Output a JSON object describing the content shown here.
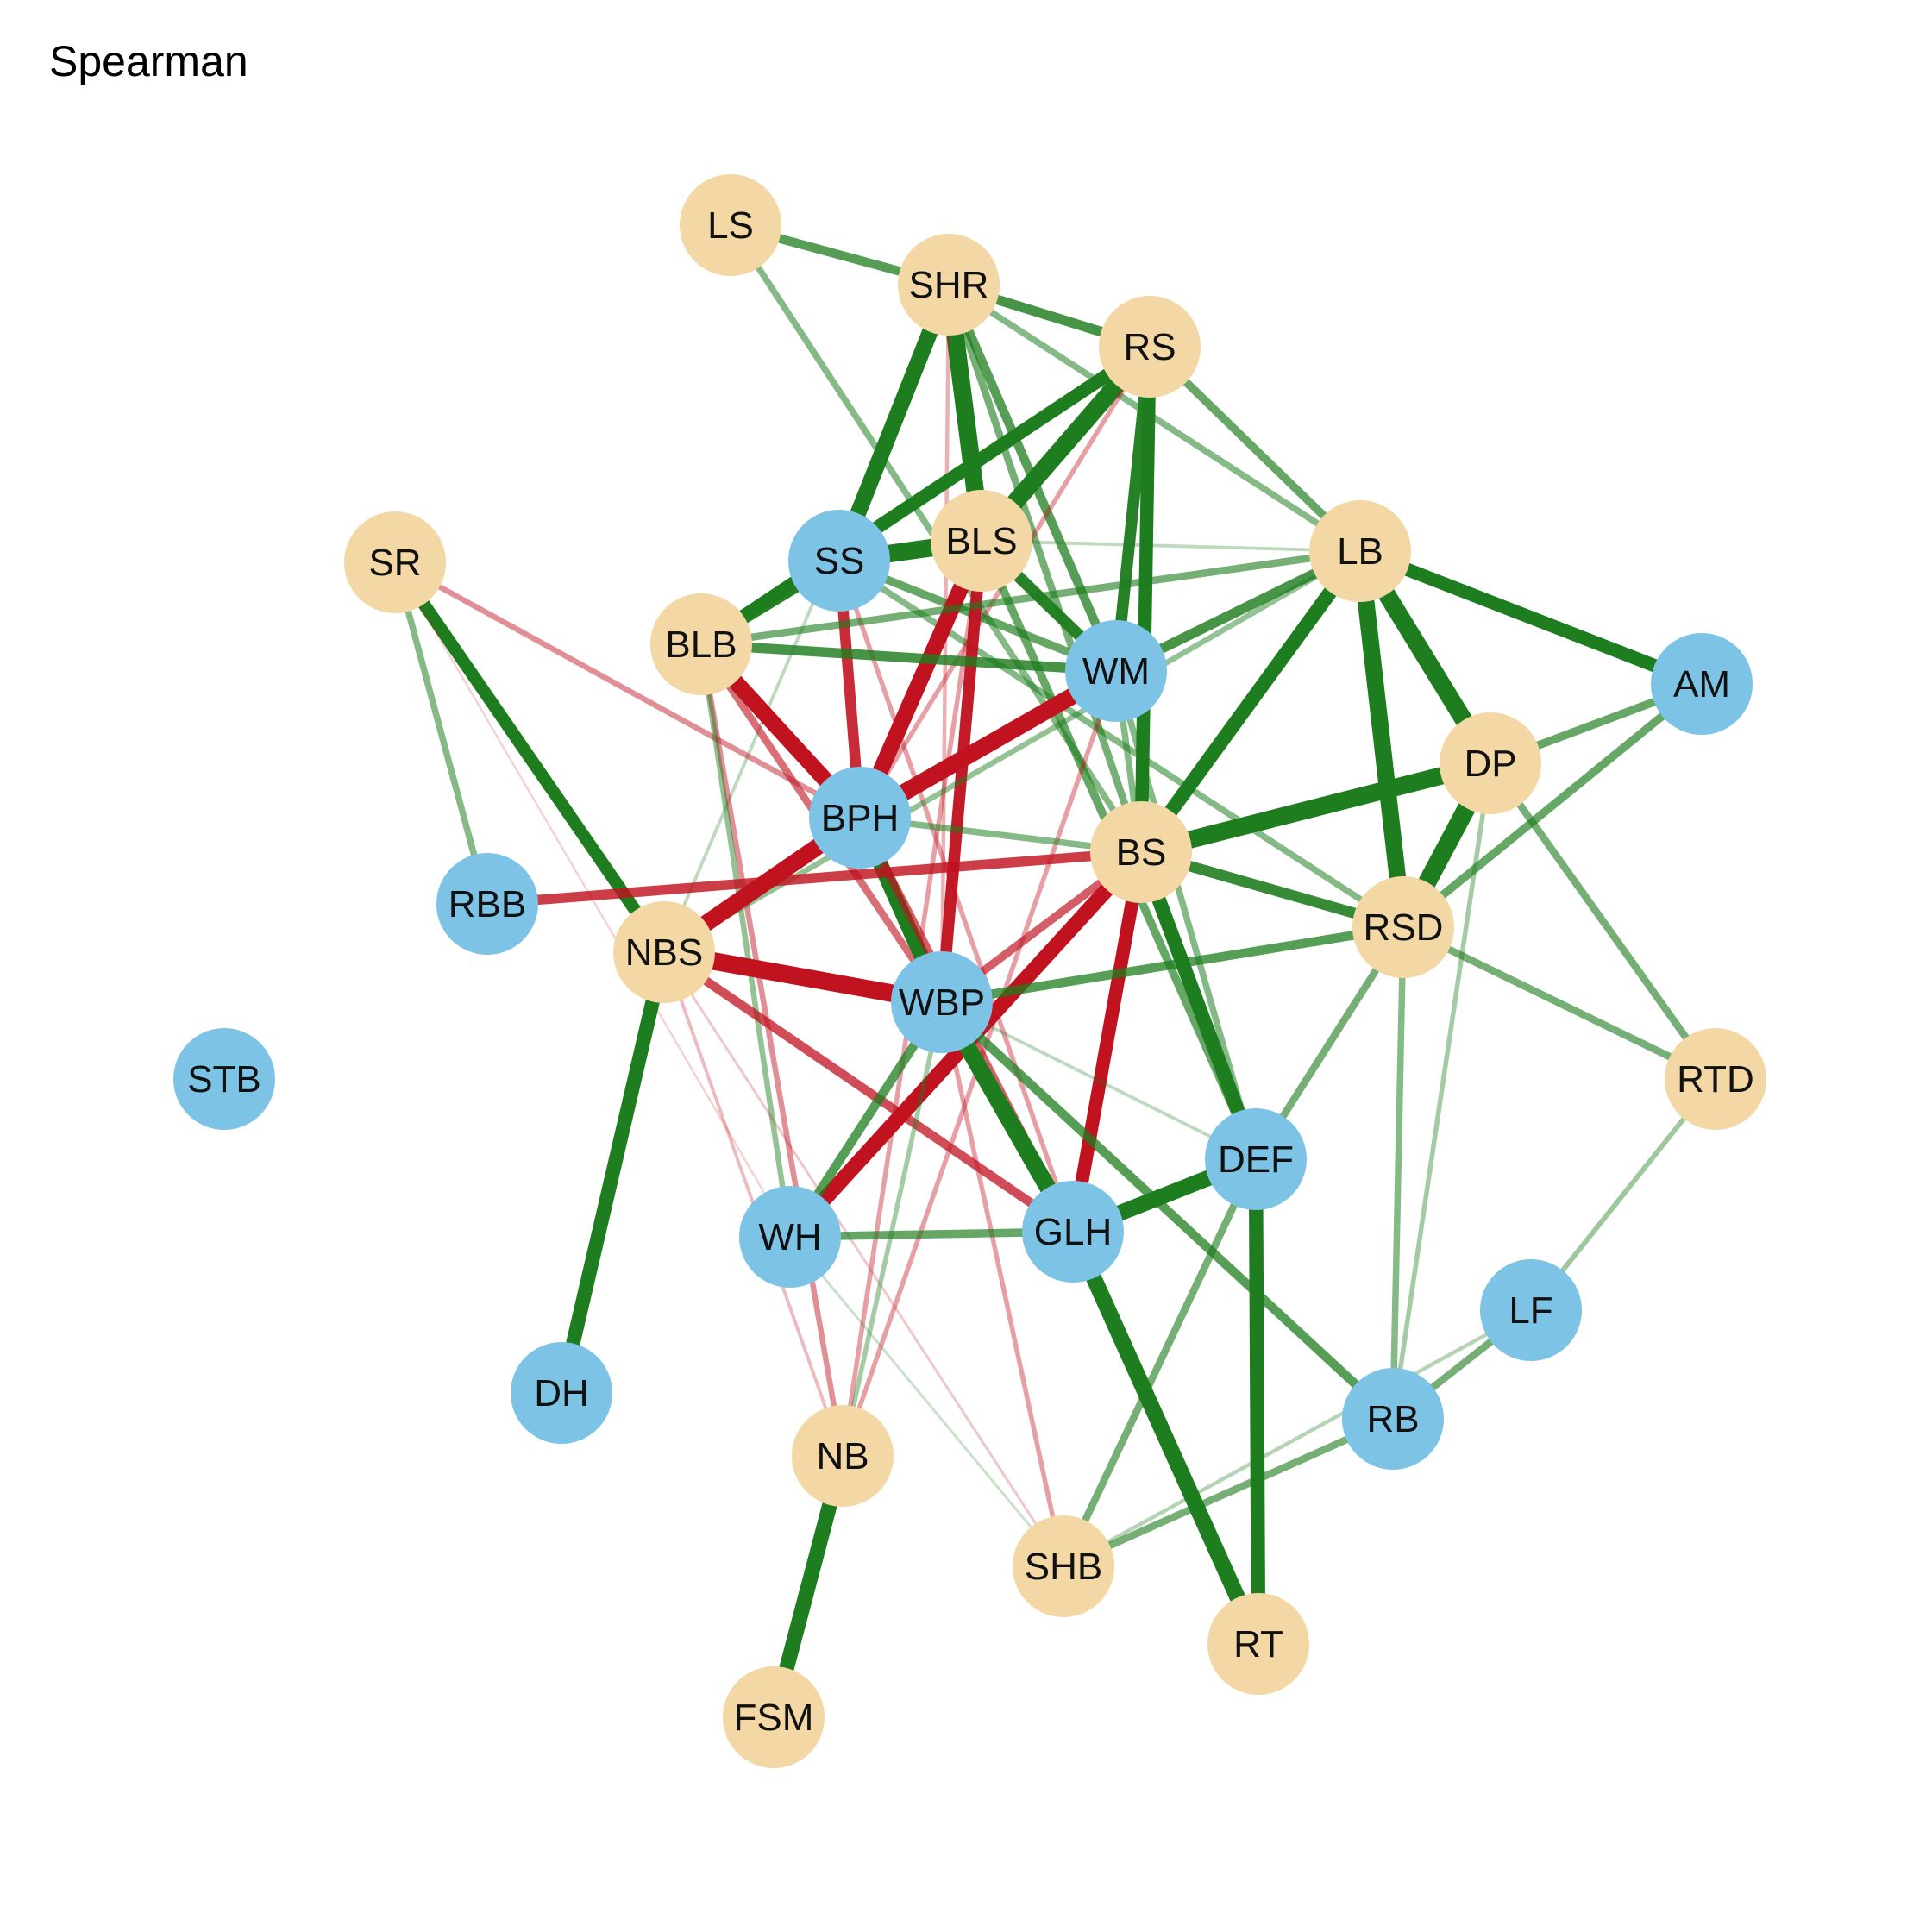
{
  "title": "Spearman",
  "colors": {
    "positive": "#1e7d1e",
    "negative": "#c0121f",
    "group_a": "#f3d7a5",
    "group_b": "#7dc3e6"
  },
  "nodes": [
    {
      "id": "LS",
      "group": "a"
    },
    {
      "id": "SHR",
      "group": "a"
    },
    {
      "id": "RS",
      "group": "a"
    },
    {
      "id": "SR",
      "group": "a"
    },
    {
      "id": "SS",
      "group": "b"
    },
    {
      "id": "BLS",
      "group": "a"
    },
    {
      "id": "LB",
      "group": "a"
    },
    {
      "id": "BLB",
      "group": "a"
    },
    {
      "id": "WM",
      "group": "b"
    },
    {
      "id": "AM",
      "group": "b"
    },
    {
      "id": "DP",
      "group": "a"
    },
    {
      "id": "BPH",
      "group": "b"
    },
    {
      "id": "BS",
      "group": "a"
    },
    {
      "id": "RBB",
      "group": "b"
    },
    {
      "id": "RSD",
      "group": "a"
    },
    {
      "id": "NBS",
      "group": "a"
    },
    {
      "id": "WBP",
      "group": "b"
    },
    {
      "id": "STB",
      "group": "b"
    },
    {
      "id": "RTD",
      "group": "a"
    },
    {
      "id": "DEF",
      "group": "b"
    },
    {
      "id": "WH",
      "group": "b"
    },
    {
      "id": "GLH",
      "group": "b"
    },
    {
      "id": "LF",
      "group": "b"
    },
    {
      "id": "DH",
      "group": "b"
    },
    {
      "id": "RB",
      "group": "b"
    },
    {
      "id": "NB",
      "group": "a"
    },
    {
      "id": "SHB",
      "group": "a"
    },
    {
      "id": "RT",
      "group": "a"
    },
    {
      "id": "FSM",
      "group": "a"
    }
  ],
  "edges": [
    {
      "source": "LS",
      "target": "SHR",
      "weight": 0.45
    },
    {
      "source": "LS",
      "target": "BS",
      "weight": 0.3
    },
    {
      "source": "SHR",
      "target": "RS",
      "weight": 0.5
    },
    {
      "source": "SHR",
      "target": "SS",
      "weight": 0.85
    },
    {
      "source": "SHR",
      "target": "BLS",
      "weight": 0.95
    },
    {
      "source": "SHR",
      "target": "WM",
      "weight": 0.45
    },
    {
      "source": "SHR",
      "target": "LB",
      "weight": 0.3
    },
    {
      "source": "SHR",
      "target": "BS",
      "weight": 0.35
    },
    {
      "source": "SHR",
      "target": "WBP",
      "weight": -0.15
    },
    {
      "source": "SHR",
      "target": "NBS",
      "weight": 0.12
    },
    {
      "source": "RS",
      "target": "BLB",
      "weight": 0.7
    },
    {
      "source": "RS",
      "target": "BLS",
      "weight": 0.95
    },
    {
      "source": "RS",
      "target": "WM",
      "weight": 0.6
    },
    {
      "source": "RS",
      "target": "BS",
      "weight": 0.7
    },
    {
      "source": "RS",
      "target": "LB",
      "weight": 0.4
    },
    {
      "source": "RS",
      "target": "BPH",
      "weight": -0.2
    },
    {
      "source": "SR",
      "target": "NBS",
      "weight": 0.65
    },
    {
      "source": "SR",
      "target": "RBB",
      "weight": 0.3
    },
    {
      "source": "SR",
      "target": "BPH",
      "weight": -0.25
    },
    {
      "source": "SR",
      "target": "WH",
      "weight": -0.05
    },
    {
      "source": "SS",
      "target": "BLS",
      "weight": 0.95
    },
    {
      "source": "SS",
      "target": "BLB",
      "weight": 0.6
    },
    {
      "source": "SS",
      "target": "BPH",
      "weight": -0.55
    },
    {
      "source": "SS",
      "target": "WM",
      "weight": 0.4
    },
    {
      "source": "SS",
      "target": "GLH",
      "weight": -0.2
    },
    {
      "source": "SS",
      "target": "RSD",
      "weight": 0.3
    },
    {
      "source": "BLS",
      "target": "BPH",
      "weight": -0.85
    },
    {
      "source": "BLS",
      "target": "WBP",
      "weight": -0.6
    },
    {
      "source": "BLS",
      "target": "WM",
      "weight": 0.6
    },
    {
      "source": "BLS",
      "target": "LB",
      "weight": 0.12
    },
    {
      "source": "BLS",
      "target": "DEF",
      "weight": 0.4
    },
    {
      "source": "BLS",
      "target": "NB",
      "weight": -0.2
    },
    {
      "source": "BLB",
      "target": "WM",
      "weight": 0.5
    },
    {
      "source": "BLB",
      "target": "BPH",
      "weight": -0.85
    },
    {
      "source": "BLB",
      "target": "LB",
      "weight": 0.35
    },
    {
      "source": "BLB",
      "target": "WBP",
      "weight": -0.35
    },
    {
      "source": "BLB",
      "target": "NB",
      "weight": -0.25
    },
    {
      "source": "BLB",
      "target": "WH",
      "weight": 0.25
    },
    {
      "source": "LB",
      "target": "WM",
      "weight": 0.5
    },
    {
      "source": "LB",
      "target": "AM",
      "weight": 0.7
    },
    {
      "source": "LB",
      "target": "DP",
      "weight": 0.95
    },
    {
      "source": "LB",
      "target": "RSD",
      "weight": 0.9
    },
    {
      "source": "LB",
      "target": "BS",
      "weight": 0.75
    },
    {
      "source": "LB",
      "target": "NBS",
      "weight": 0.25
    },
    {
      "source": "WM",
      "target": "BPH",
      "weight": -0.9
    },
    {
      "source": "WM",
      "target": "BS",
      "weight": 0.3
    },
    {
      "source": "WM",
      "target": "DEF",
      "weight": 0.3
    },
    {
      "source": "WM",
      "target": "NB",
      "weight": -0.2
    },
    {
      "source": "AM",
      "target": "DP",
      "weight": 0.4
    },
    {
      "source": "AM",
      "target": "RSD",
      "weight": 0.4
    },
    {
      "source": "DP",
      "target": "BS",
      "weight": 0.95
    },
    {
      "source": "DP",
      "target": "RSD",
      "weight": 0.98
    },
    {
      "source": "DP",
      "target": "RTD",
      "weight": 0.35
    },
    {
      "source": "DP",
      "target": "RB",
      "weight": 0.2
    },
    {
      "source": "BPH",
      "target": "NBS",
      "weight": -0.9
    },
    {
      "source": "BPH",
      "target": "WBP",
      "weight": 0.8
    },
    {
      "source": "BPH",
      "target": "GLH",
      "weight": -0.4
    },
    {
      "source": "BPH",
      "target": "BS",
      "weight": 0.3
    },
    {
      "source": "BS",
      "target": "RBB",
      "weight": -0.5
    },
    {
      "source": "BS",
      "target": "RSD",
      "weight": 0.55
    },
    {
      "source": "BS",
      "target": "DEF",
      "weight": 0.75
    },
    {
      "source": "BS",
      "target": "WH",
      "weight": -0.8
    },
    {
      "source": "BS",
      "target": "GLH",
      "weight": -0.7
    },
    {
      "source": "BS",
      "target": "WBP",
      "weight": -0.4
    },
    {
      "source": "RSD",
      "target": "WBP",
      "weight": 0.45
    },
    {
      "source": "RSD",
      "target": "RTD",
      "weight": 0.35
    },
    {
      "source": "RSD",
      "target": "RB",
      "weight": 0.3
    },
    {
      "source": "RSD",
      "target": "DEF",
      "weight": 0.35
    },
    {
      "source": "NBS",
      "target": "WBP",
      "weight": -0.95
    },
    {
      "source": "NBS",
      "target": "DH",
      "weight": 0.75
    },
    {
      "source": "NBS",
      "target": "GLH",
      "weight": -0.45
    },
    {
      "source": "NBS",
      "target": "NB",
      "weight": -0.12
    },
    {
      "source": "NBS",
      "target": "SHB",
      "weight": -0.08
    },
    {
      "source": "WBP",
      "target": "GLH",
      "weight": 0.9
    },
    {
      "source": "WBP",
      "target": "WH",
      "weight": 0.45
    },
    {
      "source": "WBP",
      "target": "DEF",
      "weight": 0.12
    },
    {
      "source": "WBP",
      "target": "RB",
      "weight": 0.45
    },
    {
      "source": "WBP",
      "target": "NB",
      "weight": 0.2
    },
    {
      "source": "WBP",
      "target": "SHB",
      "weight": -0.2
    },
    {
      "source": "RTD",
      "target": "LF",
      "weight": 0.22
    },
    {
      "source": "DEF",
      "target": "GLH",
      "weight": 0.85
    },
    {
      "source": "DEF",
      "target": "RT",
      "weight": 0.75
    },
    {
      "source": "DEF",
      "target": "SHB",
      "weight": 0.35
    },
    {
      "source": "WH",
      "target": "GLH",
      "weight": 0.4
    },
    {
      "source": "WH",
      "target": "SHB",
      "weight": 0.08
    },
    {
      "source": "GLH",
      "target": "RT",
      "weight": 0.85
    },
    {
      "source": "LF",
      "target": "RB",
      "weight": 0.35
    },
    {
      "source": "LF",
      "target": "SHB",
      "weight": 0.15
    },
    {
      "source": "RB",
      "target": "SHB",
      "weight": 0.35
    },
    {
      "source": "NB",
      "target": "FSM",
      "weight": 0.8
    }
  ]
}
